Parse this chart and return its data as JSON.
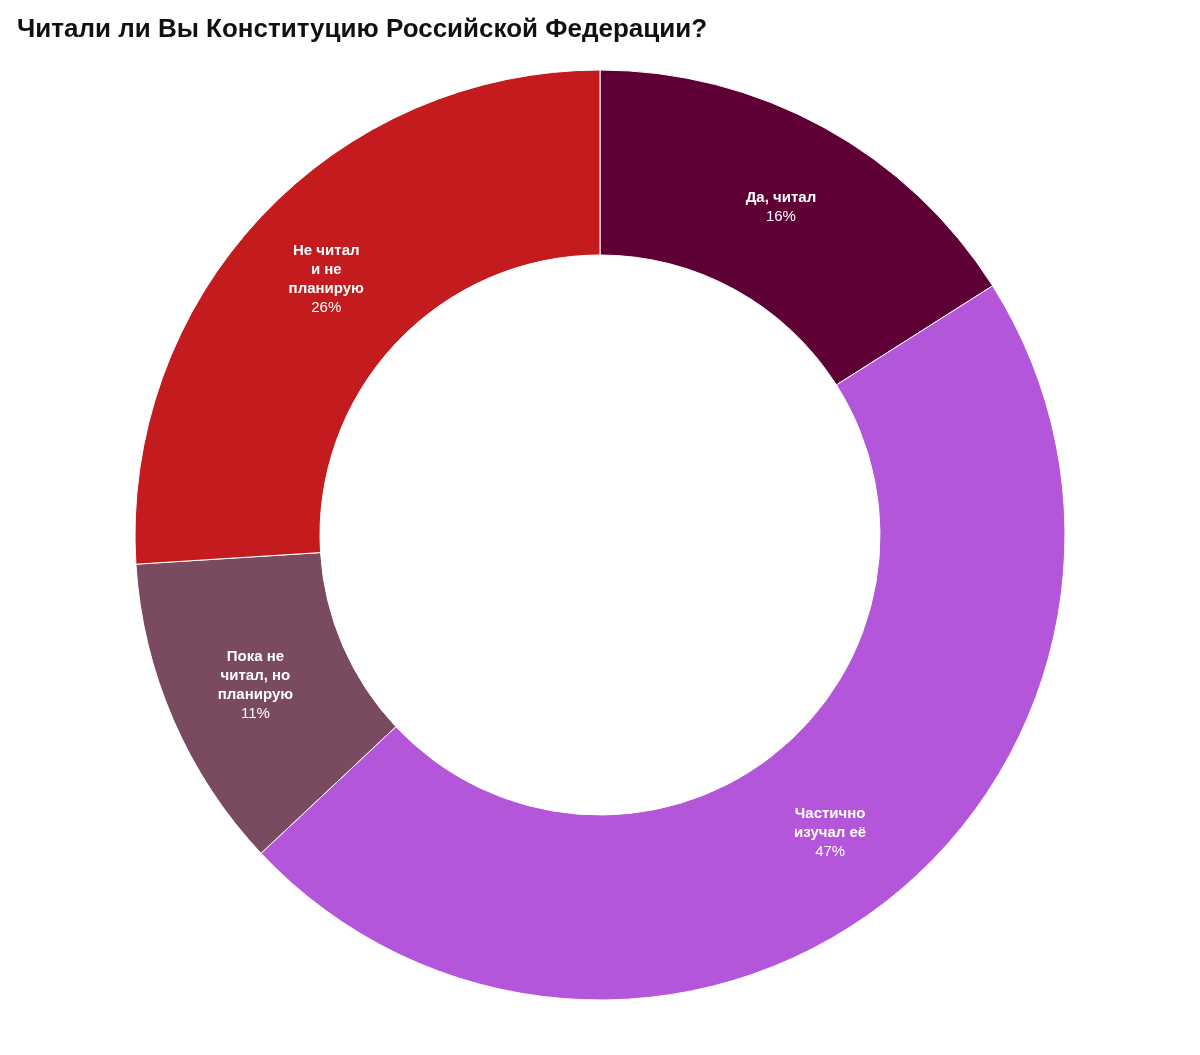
{
  "chart_data": {
    "type": "donut",
    "title": "Читали ли Вы Конституцию Российской Федерации?",
    "categories": [
      "Да, читал",
      "Частично изучал её",
      "Пока не читал, но планирую",
      "Не читал и не планирую"
    ],
    "values": [
      16,
      47,
      11,
      26
    ],
    "colors": [
      "#5e0035",
      "#b356d9",
      "#7a4a60",
      "#c41c1e"
    ],
    "value_labels": [
      "16%",
      "47%",
      "11%",
      "26%"
    ],
    "legend": false
  }
}
